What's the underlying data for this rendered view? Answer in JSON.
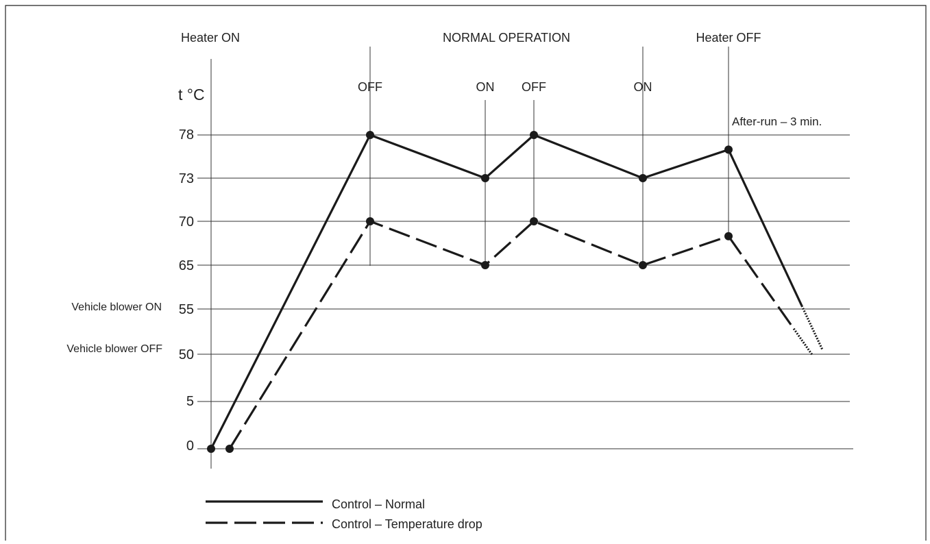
{
  "chart_data": {
    "type": "line",
    "y_axis_label": "t °C",
    "y_ticks": [
      "78",
      "73",
      "70",
      "65",
      "55",
      "50",
      "5",
      "0"
    ],
    "y_side_labels": [
      {
        "text": "Vehicle blower ON",
        "tick": "55"
      },
      {
        "text": "Vehicle blower OFF",
        "tick": "50"
      }
    ],
    "top_labels": [
      "Heater ON",
      "NORMAL OPERATION",
      "Heater OFF"
    ],
    "switch_labels": [
      "OFF",
      "ON",
      "OFF",
      "ON"
    ],
    "annotation": "After-run – 3 min.",
    "events": [
      {
        "name": "heater-on"
      },
      {
        "name": "off-1",
        "label": "OFF"
      },
      {
        "name": "on-1",
        "label": "ON"
      },
      {
        "name": "off-2",
        "label": "OFF"
      },
      {
        "name": "on-2",
        "label": "ON"
      },
      {
        "name": "heater-off"
      }
    ],
    "series": [
      {
        "name": "Control – Normal",
        "style": "solid",
        "points": [
          {
            "event": "heater-on",
            "y": "0"
          },
          {
            "event": "off-1",
            "y": "78"
          },
          {
            "event": "on-1",
            "y": "73"
          },
          {
            "event": "off-2",
            "y": "78"
          },
          {
            "event": "on-2",
            "y": "73"
          },
          {
            "event": "heater-off",
            "y": "76.3"
          }
        ],
        "tail_end_y": "50.5"
      },
      {
        "name": "Control – Temperature drop",
        "style": "dashed",
        "points": [
          {
            "event": "heater-on",
            "y": "0",
            "offset": 1
          },
          {
            "event": "off-1",
            "y": "70"
          },
          {
            "event": "on-1",
            "y": "65"
          },
          {
            "event": "off-2",
            "y": "70"
          },
          {
            "event": "on-2",
            "y": "65"
          },
          {
            "event": "heater-off",
            "y": "68.3"
          }
        ],
        "tail_end_y": "49.5"
      }
    ],
    "legend": [
      "Control – Normal",
      "Control – Temperature drop"
    ],
    "legend_position": "bottom-left",
    "grid": "horizontal"
  }
}
